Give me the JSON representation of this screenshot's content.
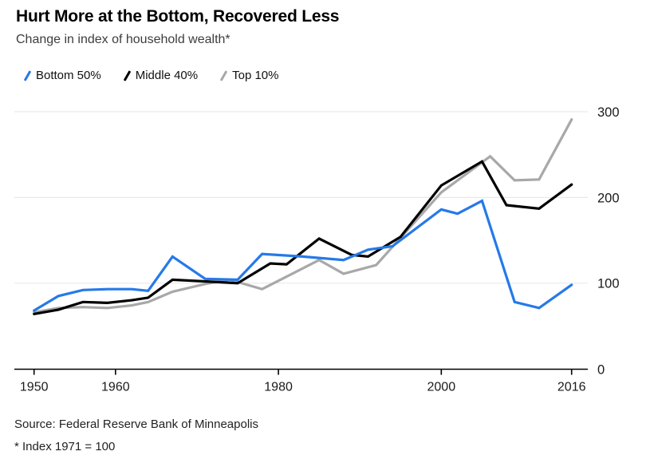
{
  "header": {
    "title": "Hurt More at the Bottom, Recovered Less",
    "subtitle": "Change in index of household wealth*"
  },
  "legend": [
    {
      "label": "Bottom 50%",
      "color": "#2679e8"
    },
    {
      "label": "Middle 40%",
      "color": "#000000"
    },
    {
      "label": "Top 10%",
      "color": "#a8a8a8"
    }
  ],
  "footer": {
    "source": "Source: Federal Reserve Bank of Minneapolis",
    "note": "* Index 1971 = 100"
  },
  "colors": {
    "bottom50": "#2679e8",
    "middle40": "#000000",
    "top10": "#a8a8a8",
    "gridline": "#e9e9e9",
    "axis": "#000000",
    "tick_label": "#1a1a1a"
  },
  "chart_data": {
    "type": "line",
    "title": "Hurt More at the Bottom, Recovered Less",
    "subtitle": "Change in index of household wealth*",
    "xlabel": "",
    "ylabel": "",
    "index_note": "Index 1971 = 100",
    "grid": true,
    "legend_position": "top-left",
    "x_axis": {
      "range": [
        1950,
        2016
      ],
      "tick_years": [
        1950,
        1960,
        1980,
        2000,
        2016
      ],
      "tick_labels": [
        "1950",
        "1960",
        "1980",
        "2000",
        "2016"
      ]
    },
    "y_axis": {
      "range": [
        0,
        300
      ],
      "ticks": [
        0,
        100,
        200,
        300
      ],
      "tick_labels": [
        "0",
        "100",
        "200",
        "300"
      ],
      "position": "right"
    },
    "series": [
      {
        "name": "Bottom 50%",
        "color": "#2679e8",
        "points": [
          [
            1950,
            68
          ],
          [
            1953,
            85
          ],
          [
            1956,
            92
          ],
          [
            1959,
            93
          ],
          [
            1962,
            93
          ],
          [
            1964,
            91
          ],
          [
            1967,
            131
          ],
          [
            1971,
            105
          ],
          [
            1975,
            104
          ],
          [
            1978,
            134
          ],
          [
            1983,
            131
          ],
          [
            1988,
            127
          ],
          [
            1991,
            139
          ],
          [
            1994,
            143
          ],
          [
            2000,
            186
          ],
          [
            2002,
            181
          ],
          [
            2005,
            196
          ],
          [
            2009,
            78
          ],
          [
            2012,
            71
          ],
          [
            2016,
            98
          ]
        ]
      },
      {
        "name": "Middle 40%",
        "color": "#000000",
        "points": [
          [
            1950,
            64
          ],
          [
            1953,
            69
          ],
          [
            1956,
            78
          ],
          [
            1959,
            77
          ],
          [
            1962,
            80
          ],
          [
            1964,
            83
          ],
          [
            1967,
            104
          ],
          [
            1971,
            102
          ],
          [
            1975,
            100
          ],
          [
            1979,
            123
          ],
          [
            1981,
            122
          ],
          [
            1985,
            152
          ],
          [
            1989,
            133
          ],
          [
            1991,
            131
          ],
          [
            1995,
            154
          ],
          [
            2000,
            214
          ],
          [
            2005,
            242
          ],
          [
            2008,
            191
          ],
          [
            2012,
            187
          ],
          [
            2016,
            215
          ]
        ]
      },
      {
        "name": "Top 10%",
        "color": "#a8a8a8",
        "points": [
          [
            1950,
            66
          ],
          [
            1953,
            71
          ],
          [
            1956,
            72
          ],
          [
            1959,
            71
          ],
          [
            1962,
            74
          ],
          [
            1964,
            78
          ],
          [
            1967,
            90
          ],
          [
            1971,
            99
          ],
          [
            1974,
            104
          ],
          [
            1978,
            93
          ],
          [
            1985,
            127
          ],
          [
            1988,
            111
          ],
          [
            1992,
            121
          ],
          [
            2000,
            206
          ],
          [
            2006,
            248
          ],
          [
            2009,
            220
          ],
          [
            2012,
            221
          ],
          [
            2016,
            291
          ]
        ]
      }
    ]
  }
}
